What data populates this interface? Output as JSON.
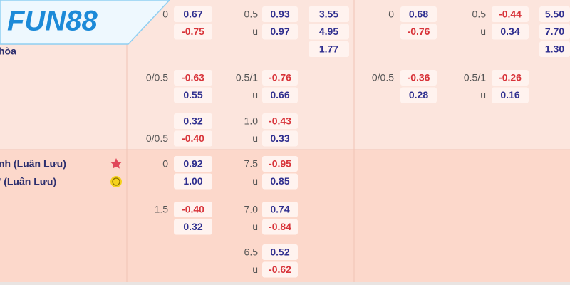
{
  "logo": "FUN88",
  "team_labels": [
    "hòa",
    "nh (Luân Lưu)",
    "' (Luân Lưu)"
  ],
  "groups": [
    {
      "full_hdp": {
        "lines": [
          "0",
          null
        ],
        "odds": [
          "0.67",
          "-0.75"
        ]
      },
      "full_ou": {
        "lines": [
          "0.5",
          "u"
        ],
        "odds": [
          "0.93",
          "0.97"
        ]
      },
      "full_1x2": {
        "odds": [
          "3.55",
          "4.95",
          "1.77"
        ]
      },
      "half_hdp": {
        "lines": [
          "0",
          null
        ],
        "odds": [
          "0.68",
          "-0.76"
        ]
      },
      "half_ou": {
        "lines": [
          "0.5",
          "u"
        ],
        "odds": [
          "-0.44",
          "0.34"
        ]
      },
      "half_1x2": {
        "odds": [
          "5.50",
          "7.70",
          "1.30"
        ]
      }
    },
    {
      "full_hdp": {
        "lines": [
          "0/0.5",
          null
        ],
        "odds": [
          "-0.63",
          "0.55"
        ]
      },
      "full_ou": {
        "lines": [
          "0.5/1",
          "u"
        ],
        "odds": [
          "-0.76",
          "0.66"
        ]
      },
      "half_hdp": {
        "lines": [
          "0/0.5",
          null
        ],
        "odds": [
          "-0.36",
          "0.28"
        ]
      },
      "half_ou": {
        "lines": [
          "0.5/1",
          "u"
        ],
        "odds": [
          "-0.26",
          "0.16"
        ]
      }
    },
    {
      "full_hdp": {
        "lines": [
          null,
          "0/0.5"
        ],
        "odds": [
          "0.32",
          "-0.40"
        ]
      },
      "full_ou": {
        "lines": [
          "1.0",
          "u"
        ],
        "odds": [
          "-0.43",
          "0.33"
        ]
      }
    },
    {
      "full_hdp": {
        "lines": [
          "0",
          null
        ],
        "odds": [
          "0.92",
          "1.00"
        ]
      },
      "full_ou": {
        "lines": [
          "7.5",
          "u"
        ],
        "odds": [
          "-0.95",
          "0.85"
        ]
      }
    },
    {
      "full_hdp": {
        "lines": [
          "1.5",
          null
        ],
        "odds": [
          "-0.40",
          "0.32"
        ]
      },
      "full_ou": {
        "lines": [
          "7.0",
          "u"
        ],
        "odds": [
          "0.74",
          "-0.84"
        ]
      }
    },
    {
      "full_ou": {
        "lines": [
          "6.5",
          "u"
        ],
        "odds": [
          "0.52",
          "-0.62"
        ]
      }
    }
  ]
}
